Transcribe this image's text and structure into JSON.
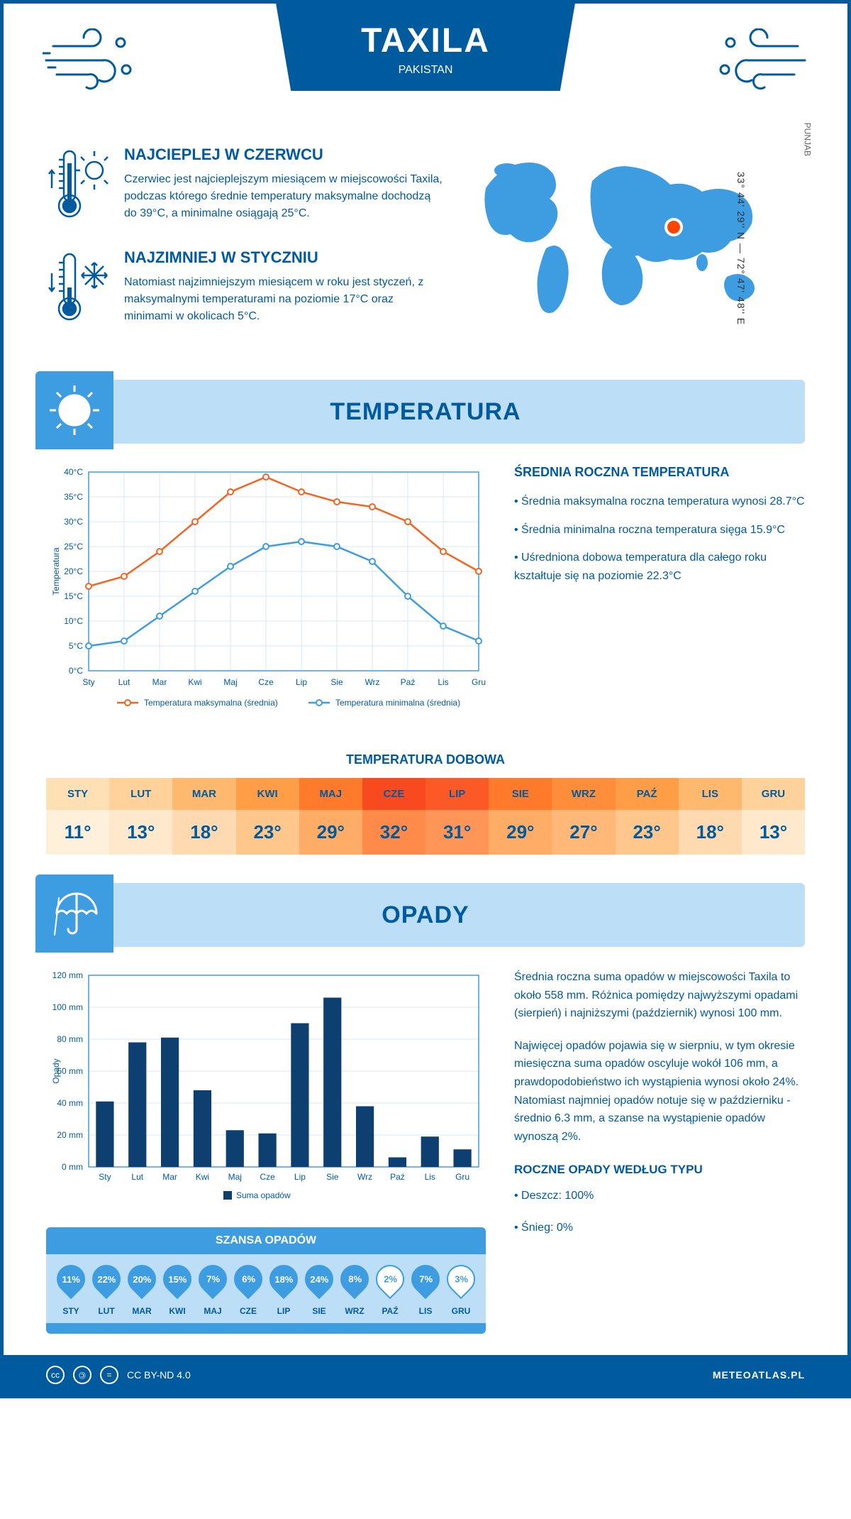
{
  "header": {
    "city": "TAXILA",
    "country": "PAKISTAN"
  },
  "coords": "33° 44' 29'' N — 72° 47' 48'' E",
  "region": "PUNJAB",
  "hot": {
    "title": "NAJCIEPLEJ W CZERWCU",
    "text": "Czerwiec jest najcieplejszym miesiącem w miejscowości Taxila, podczas którego średnie temperatury maksymalne dochodzą do 39°C, a minimalne osiągają 25°C."
  },
  "cold": {
    "title": "NAJZIMNIEJ W STYCZNIU",
    "text": "Natomiast najzimniejszym miesiącem w roku jest styczeń, z maksymalnymi temperaturami na poziomie 17°C oraz minimami w okolicach 5°C."
  },
  "temp_section": {
    "title": "TEMPERATURA",
    "chart": {
      "months": [
        "Sty",
        "Lut",
        "Mar",
        "Kwi",
        "Maj",
        "Cze",
        "Lip",
        "Sie",
        "Wrz",
        "Paź",
        "Lis",
        "Gru"
      ],
      "max_series": [
        17,
        19,
        24,
        30,
        36,
        39,
        36,
        34,
        33,
        30,
        24,
        20
      ],
      "min_series": [
        5,
        6,
        11,
        16,
        21,
        25,
        26,
        25,
        22,
        15,
        9,
        6
      ],
      "max_color": "#f26522",
      "min_color": "#3d9de0",
      "ylabel": "Temperatura",
      "y_ticks": [
        0,
        5,
        10,
        15,
        20,
        25,
        30,
        35,
        40
      ],
      "legend_max": "Temperatura maksymalna (średnia)",
      "legend_min": "Temperatura minimalna (średnia)",
      "grid_color": "#d9e8f5",
      "axis_color": "#3d9de0"
    },
    "averages": {
      "title": "ŚREDNIA ROCZNA TEMPERATURA",
      "b1": "• Średnia maksymalna roczna temperatura wynosi 28.7°C",
      "b2": "• Średnia minimalna roczna temperatura sięga 15.9°C",
      "b3": "• Uśredniona dobowa temperatura dla całego roku kształtuje się na poziomie 22.3°C"
    },
    "dobowa_title": "TEMPERATURA DOBOWA",
    "dobowa": {
      "months": [
        "STY",
        "LUT",
        "MAR",
        "KWI",
        "MAJ",
        "CZE",
        "LIP",
        "SIE",
        "WRZ",
        "PAŹ",
        "LIS",
        "GRU"
      ],
      "values": [
        "11°",
        "13°",
        "18°",
        "23°",
        "29°",
        "32°",
        "31°",
        "29°",
        "27°",
        "23°",
        "18°",
        "13°"
      ],
      "top_colors": [
        "#ffe0b5",
        "#ffd29c",
        "#ffb96f",
        "#ff9e47",
        "#ff7a2b",
        "#f94a1f",
        "#fb5a26",
        "#ff7a2b",
        "#ff8d3a",
        "#ff9e47",
        "#ffb96f",
        "#ffd29c"
      ],
      "bot_colors": [
        "#fff0dc",
        "#ffe9cd",
        "#ffd9af",
        "#ffc78c",
        "#ffad66",
        "#ff8a4a",
        "#ff9658",
        "#ffad66",
        "#ffb877",
        "#ffc78c",
        "#ffd9af",
        "#ffe9cd"
      ],
      "text_color": "#005a9e"
    }
  },
  "opady_section": {
    "title": "OPADY",
    "chart": {
      "months": [
        "Sty",
        "Lut",
        "Mar",
        "Kwi",
        "Maj",
        "Cze",
        "Lip",
        "Sie",
        "Wrz",
        "Paź",
        "Lis",
        "Gru"
      ],
      "values": [
        41,
        78,
        81,
        48,
        23,
        21,
        90,
        106,
        38,
        6,
        19,
        11
      ],
      "bar_color": "#0d3f70",
      "ylabel": "Opady",
      "y_ticks": [
        0,
        20,
        40,
        60,
        80,
        100,
        120
      ],
      "legend": "Suma opadów",
      "grid_color": "#d9e8f5",
      "axis_color": "#3d9de0"
    },
    "text1": "Średnia roczna suma opadów w miejscowości Taxila to około 558 mm. Różnica pomiędzy najwyższymi opadami (sierpień) i najniższymi (październik) wynosi 100 mm.",
    "text2": "Najwięcej opadów pojawia się w sierpniu, w tym okresie miesięczna suma opadów oscyluje wokół 106 mm, a prawdopodobieństwo ich wystąpienia wynosi około 24%. Natomiast najmniej opadów notuje się w październiku - średnio 6.3 mm, a szanse na wystąpienie opadów wynoszą 2%.",
    "type_title": "ROCZNE OPADY WEDŁUG TYPU",
    "type_1": "• Deszcz: 100%",
    "type_2": "• Śnieg: 0%",
    "szansa_title": "SZANSA OPADÓW",
    "szansa": {
      "months": [
        "STY",
        "LUT",
        "MAR",
        "KWI",
        "MAJ",
        "CZE",
        "LIP",
        "SIE",
        "WRZ",
        "PAŹ",
        "LIS",
        "GRU"
      ],
      "values": [
        "11%",
        "22%",
        "20%",
        "15%",
        "7%",
        "6%",
        "18%",
        "24%",
        "8%",
        "2%",
        "7%",
        "3%"
      ],
      "filled": [
        true,
        true,
        true,
        true,
        true,
        true,
        true,
        true,
        true,
        false,
        true,
        false
      ],
      "fill_color": "#3d9de0",
      "empty_color": "#ffffff",
      "fill_text": "#ffffff",
      "empty_text": "#3d9de0"
    }
  },
  "footer": {
    "license": "CC BY-ND 4.0",
    "site": "METEOATLAS.PL"
  },
  "colors": {
    "brand": "#005a9e",
    "light": "#bcdff7",
    "mid": "#3d9de0"
  }
}
